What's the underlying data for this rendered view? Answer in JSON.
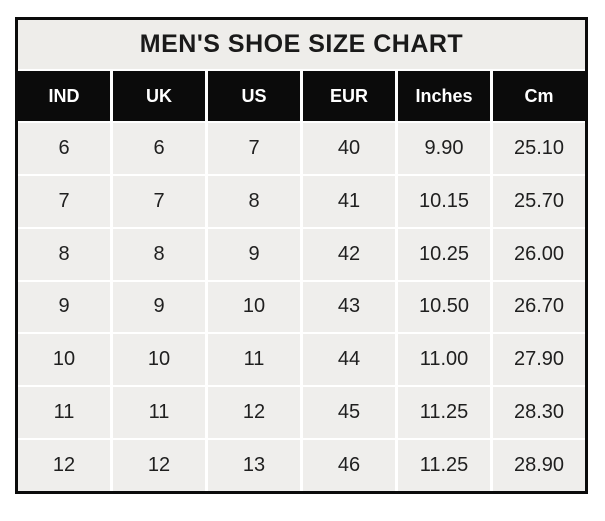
{
  "title": "MEN'S SHOE SIZE CHART",
  "chart_data": {
    "type": "table",
    "title": "MEN'S SHOE SIZE CHART",
    "columns": [
      "IND",
      "UK",
      "US",
      "EUR",
      "Inches",
      "Cm"
    ],
    "rows": [
      [
        "6",
        "6",
        "7",
        "40",
        "9.90",
        "25.10"
      ],
      [
        "7",
        "7",
        "8",
        "41",
        "10.15",
        "25.70"
      ],
      [
        "8",
        "8",
        "9",
        "42",
        "10.25",
        "26.00"
      ],
      [
        "9",
        "9",
        "10",
        "43",
        "10.50",
        "26.70"
      ],
      [
        "10",
        "10",
        "11",
        "44",
        "11.00",
        "27.90"
      ],
      [
        "11",
        "11",
        "12",
        "45",
        "11.25",
        "28.30"
      ],
      [
        "12",
        "12",
        "13",
        "46",
        "11.25",
        "28.90"
      ]
    ],
    "layout": {
      "header_style": "black background, white bold text, white gridline gaps",
      "body_style": "light gray cells, white gridline gaps, black outer border"
    }
  },
  "colors": {
    "page_bg": "#ffffff",
    "border": "#0b0b0b",
    "title_bg": "#eeedea",
    "title_text": "#1a1a1a",
    "header_bg": "#0b0b0b",
    "header_text": "#ffffff",
    "cell_bg": "#efeeec",
    "cell_text": "#1f1f1f",
    "gridline": "#ffffff"
  }
}
